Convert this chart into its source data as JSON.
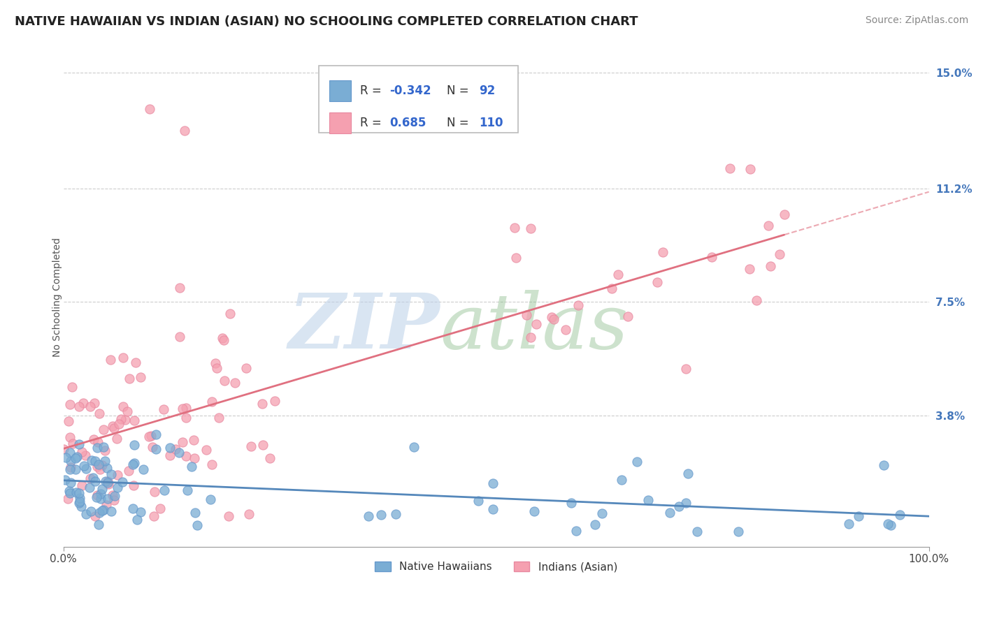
{
  "title": "NATIVE HAWAIIAN VS INDIAN (ASIAN) NO SCHOOLING COMPLETED CORRELATION CHART",
  "source": "Source: ZipAtlas.com",
  "ylabel": "No Schooling Completed",
  "ytick_values": [
    3.8,
    7.5,
    11.2,
    15.0
  ],
  "xlim": [
    0.0,
    100.0
  ],
  "ylim": [
    -0.5,
    15.8
  ],
  "ymin_plot": 0.0,
  "legend_r_blue": "-0.342",
  "legend_n_blue": "92",
  "legend_r_pink": "0.685",
  "legend_n_pink": "110",
  "legend_label_blue": "Native Hawaiians",
  "legend_label_pink": "Indians (Asian)",
  "blue_color": "#7aadd4",
  "pink_color": "#f5a0b0",
  "blue_line_color": "#5588bb",
  "pink_line_color": "#e07080",
  "watermark_zip_color": "#c8d8e8",
  "watermark_atlas_color": "#a8c8a8",
  "title_fontsize": 13,
  "source_fontsize": 10,
  "axis_label_fontsize": 10,
  "tick_fontsize": 11,
  "legend_fontsize": 12
}
